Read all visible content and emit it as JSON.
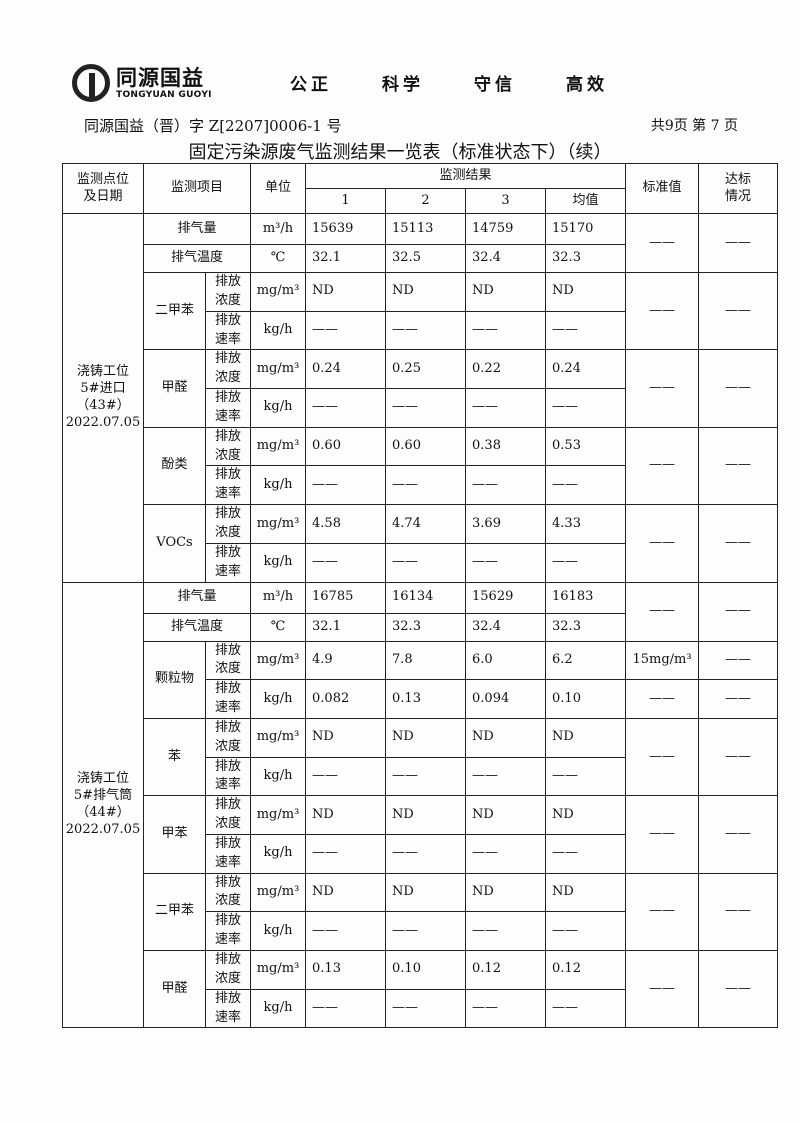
{
  "header": {
    "logo_cn": "同源国益",
    "logo_en": "TONGYUAN GUOYI",
    "motto": [
      "公正",
      "科学",
      "守信",
      "高效"
    ],
    "doc_no": "同源国益（晋）字 Z[2207]0006-1 号",
    "pages": "共9页  第 7 页",
    "title": "固定污染源废气监测结果一览表（标准状态下）（续）"
  },
  "table": {
    "headers": {
      "location": "监测点位\n及日期",
      "item": "监测项目",
      "unit": "单位",
      "results": "监测结果",
      "cols": [
        "1",
        "2",
        "3",
        "均值"
      ],
      "std": "标准值",
      "pass": "达标\n情况"
    },
    "sections": [
      {
        "location": "浇铸工位\n5#进口\n（43#）\n2022.07.05",
        "flow": {
          "label": "排气量",
          "unit": "m³/h",
          "values": [
            "15639",
            "15113",
            "14759",
            "15170"
          ]
        },
        "temp": {
          "label": "排气温度",
          "unit": "℃",
          "values": [
            "32.1",
            "32.5",
            "32.4",
            "32.3"
          ]
        },
        "std": "——",
        "pass": "——",
        "pollutants": [
          {
            "name": "二甲苯",
            "conc": {
              "label": "排放\n浓度",
              "unit": "mg/m³",
              "values": [
                "ND",
                "ND",
                "ND",
                "ND"
              ]
            },
            "rate": {
              "label": "排放\n速率",
              "unit": "kg/h",
              "values": [
                "——",
                "——",
                "——",
                "——"
              ]
            },
            "std": "——",
            "pass": "——"
          },
          {
            "name": "甲醛",
            "conc": {
              "label": "排放\n浓度",
              "unit": "mg/m³",
              "values": [
                "0.24",
                "0.25",
                "0.22",
                "0.24"
              ]
            },
            "rate": {
              "label": "排放\n速率",
              "unit": "kg/h",
              "values": [
                "——",
                "——",
                "——",
                "——"
              ]
            },
            "std": "——",
            "pass": "——"
          },
          {
            "name": "酚类",
            "conc": {
              "label": "排放\n浓度",
              "unit": "mg/m³",
              "values": [
                "0.60",
                "0.60",
                "0.38",
                "0.53"
              ]
            },
            "rate": {
              "label": "排放\n速率",
              "unit": "kg/h",
              "values": [
                "——",
                "——",
                "——",
                "——"
              ]
            },
            "std": "——",
            "pass": "——"
          },
          {
            "name": "VOCs",
            "conc": {
              "label": "排放\n浓度",
              "unit": "mg/m³",
              "values": [
                "4.58",
                "4.74",
                "3.69",
                "4.33"
              ]
            },
            "rate": {
              "label": "排放\n速率",
              "unit": "kg/h",
              "values": [
                "——",
                "——",
                "——",
                "——"
              ]
            },
            "std": "——",
            "pass": "——"
          }
        ]
      },
      {
        "location": "浇铸工位\n5#排气筒\n（44#）\n2022.07.05",
        "flow": {
          "label": "排气量",
          "unit": "m³/h",
          "values": [
            "16785",
            "16134",
            "15629",
            "16183"
          ]
        },
        "temp": {
          "label": "排气温度",
          "unit": "℃",
          "values": [
            "32.1",
            "32.3",
            "32.4",
            "32.3"
          ]
        },
        "std": "——",
        "pass": "——",
        "pollutants": [
          {
            "name": "颗粒物",
            "conc": {
              "label": "排放\n浓度",
              "unit": "mg/m³",
              "values": [
                "4.9",
                "7.8",
                "6.0",
                "6.2"
              ],
              "std": "15mg/m³",
              "pass": "——"
            },
            "rate": {
              "label": "排放\n速率",
              "unit": "kg/h",
              "values": [
                "0.082",
                "0.13",
                "0.094",
                "0.10"
              ],
              "std": "——",
              "pass": "——"
            }
          },
          {
            "name": "苯",
            "conc": {
              "label": "排放\n浓度",
              "unit": "mg/m³",
              "values": [
                "ND",
                "ND",
                "ND",
                "ND"
              ]
            },
            "rate": {
              "label": "排放\n速率",
              "unit": "kg/h",
              "values": [
                "——",
                "——",
                "——",
                "——"
              ]
            },
            "std": "——",
            "pass": "——"
          },
          {
            "name": "甲苯",
            "conc": {
              "label": "排放\n浓度",
              "unit": "mg/m³",
              "values": [
                "ND",
                "ND",
                "ND",
                "ND"
              ]
            },
            "rate": {
              "label": "排放\n速率",
              "unit": "kg/h",
              "values": [
                "——",
                "——",
                "——",
                "——"
              ]
            },
            "std": "——",
            "pass": "——"
          },
          {
            "name": "二甲苯",
            "conc": {
              "label": "排放\n浓度",
              "unit": "mg/m³",
              "values": [
                "ND",
                "ND",
                "ND",
                "ND"
              ]
            },
            "rate": {
              "label": "排放\n速率",
              "unit": "kg/h",
              "values": [
                "——",
                "——",
                "——",
                "——"
              ]
            },
            "std": "——",
            "pass": "——"
          },
          {
            "name": "甲醛",
            "conc": {
              "label": "排放\n浓度",
              "unit": "mg/m³",
              "values": [
                "0.13",
                "0.10",
                "0.12",
                "0.12"
              ]
            },
            "rate": {
              "label": "排放\n速率",
              "unit": "kg/h",
              "values": [
                "——",
                "——",
                "——",
                "——"
              ]
            },
            "std": "——",
            "pass": "——"
          }
        ]
      }
    ]
  }
}
